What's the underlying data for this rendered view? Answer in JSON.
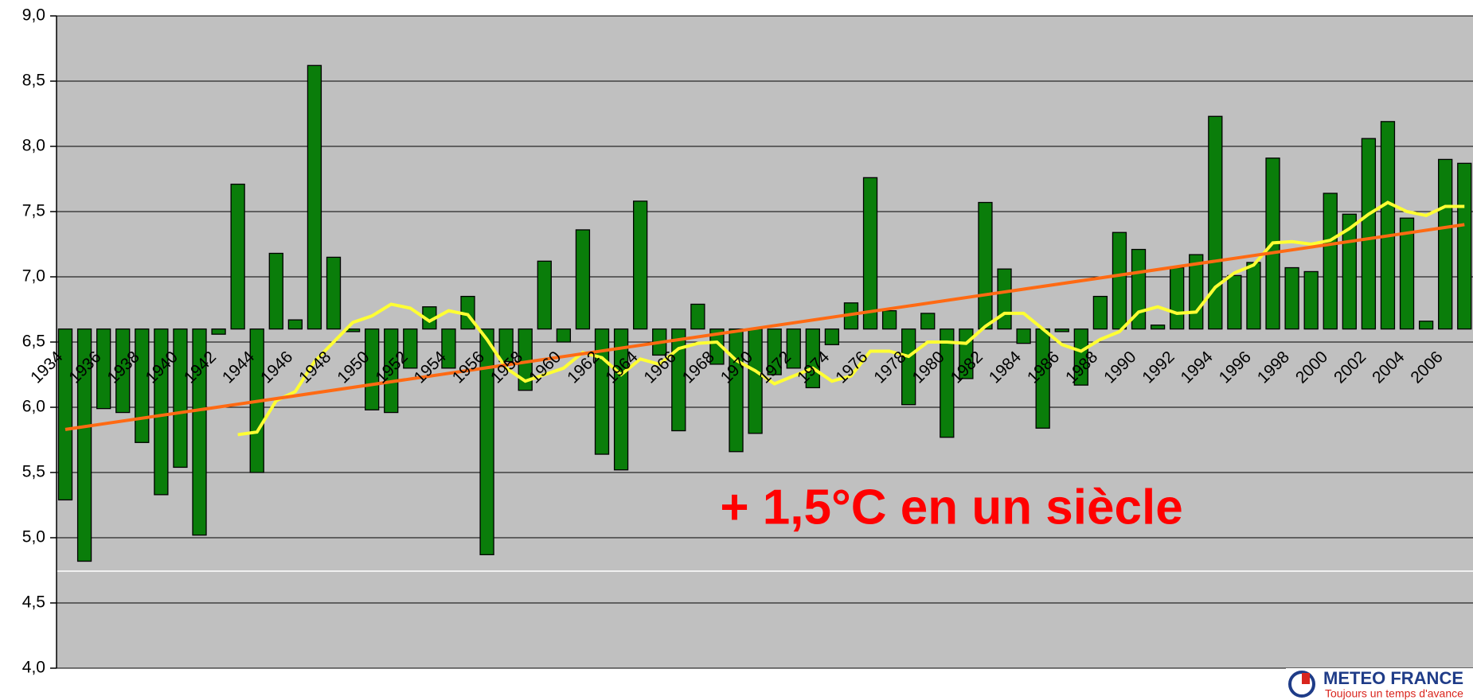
{
  "chart_data": {
    "type": "bar",
    "categories": [
      "1934",
      null,
      "1936",
      null,
      "1938",
      null,
      "1940",
      null,
      "1942",
      null,
      "1944",
      null,
      "1946",
      null,
      "1948",
      null,
      "1950",
      null,
      "1952",
      null,
      "1954",
      null,
      "1956",
      null,
      "1958",
      null,
      "1960",
      null,
      "1962",
      null,
      "1964",
      null,
      "1966",
      null,
      "1968",
      null,
      "1970",
      null,
      "1972",
      null,
      "1974",
      null,
      "1976",
      null,
      "1978",
      null,
      "1980",
      null,
      "1982",
      null,
      "1984",
      null,
      "1986",
      null,
      "1988",
      null,
      "1990",
      null,
      "1992",
      null,
      "1994",
      null,
      "1996",
      null,
      "1998",
      null,
      "2000",
      null,
      "2002",
      null,
      "2004",
      null,
      "2006",
      null
    ],
    "bar_base": 6.6,
    "series": [
      {
        "type": "bar",
        "color": "#0a7d0a",
        "values": [
          5.29,
          4.82,
          5.99,
          5.96,
          5.73,
          5.33,
          5.54,
          5.02,
          6.56,
          7.71,
          5.5,
          7.18,
          6.67,
          8.62,
          7.15,
          6.58,
          5.98,
          5.96,
          6.3,
          6.77,
          6.3,
          6.85,
          4.87,
          6.35,
          6.13,
          7.12,
          6.5,
          7.36,
          5.64,
          5.52,
          7.58,
          6.4,
          5.82,
          6.79,
          6.33,
          5.66,
          5.8,
          6.25,
          6.3,
          6.15,
          6.48,
          6.8,
          7.76,
          6.74,
          6.02,
          6.72,
          5.77,
          6.22,
          7.57,
          7.06,
          6.49,
          5.84,
          6.58,
          6.17,
          6.85,
          7.34,
          7.21,
          6.63,
          7.07,
          7.17,
          8.23,
          7.01,
          7.11,
          7.91,
          7.07,
          7.04,
          7.64,
          7.48,
          8.06,
          8.19,
          7.45,
          6.66,
          7.9,
          7.87
        ]
      },
      {
        "type": "line",
        "color": "#ffff33",
        "values": [
          null,
          null,
          null,
          null,
          null,
          null,
          null,
          null,
          null,
          5.79,
          5.81,
          6.05,
          6.12,
          6.35,
          6.5,
          6.65,
          6.7,
          6.79,
          6.76,
          6.66,
          6.74,
          6.71,
          6.52,
          6.3,
          6.2,
          6.25,
          6.3,
          6.42,
          6.38,
          6.25,
          6.37,
          6.33,
          6.45,
          6.49,
          6.5,
          6.36,
          6.28,
          6.18,
          6.24,
          6.3,
          6.2,
          6.24,
          6.43,
          6.43,
          6.39,
          6.5,
          6.5,
          6.49,
          6.62,
          6.72,
          6.72,
          6.6,
          6.48,
          6.43,
          6.52,
          6.58,
          6.73,
          6.77,
          6.72,
          6.73,
          6.92,
          7.03,
          7.09,
          7.26,
          7.27,
          7.25,
          7.28,
          7.37,
          7.48,
          7.57,
          7.5,
          7.47,
          7.54,
          7.54
        ]
      },
      {
        "type": "line",
        "color": "#ff6a13",
        "values": [
          5.83,
          null,
          null,
          null,
          null,
          null,
          null,
          null,
          null,
          null,
          null,
          null,
          null,
          null,
          null,
          null,
          null,
          null,
          null,
          null,
          null,
          null,
          null,
          null,
          null,
          null,
          null,
          null,
          null,
          null,
          null,
          null,
          null,
          null,
          null,
          null,
          null,
          null,
          null,
          null,
          null,
          null,
          null,
          null,
          null,
          null,
          null,
          null,
          null,
          null,
          null,
          null,
          null,
          null,
          null,
          null,
          null,
          null,
          null,
          null,
          null,
          null,
          null,
          null,
          null,
          null,
          null,
          null,
          null,
          null,
          null,
          null,
          null,
          7.4
        ],
        "connect_gaps": true
      }
    ],
    "ylim": [
      4.0,
      9.0
    ],
    "yticks": [
      {
        "value": 4.0,
        "label": "4,0"
      },
      {
        "value": 4.5,
        "label": "4,5"
      },
      {
        "value": 5.0,
        "label": "5,0"
      },
      {
        "value": 5.5,
        "label": "5,5"
      },
      {
        "value": 6.0,
        "label": "6,0"
      },
      {
        "value": 6.5,
        "label": "6,5"
      },
      {
        "value": 7.0,
        "label": "7,0"
      },
      {
        "value": 7.5,
        "label": "7,5"
      },
      {
        "value": 8.0,
        "label": "8,0"
      },
      {
        "value": 8.5,
        "label": "8,5"
      },
      {
        "value": 9.0,
        "label": "9,0"
      }
    ],
    "grid": true,
    "annotation": "+ 1,5°C en un siècle"
  },
  "logo": {
    "name": "METEO FRANCE",
    "tagline": "Toujours un temps d'avance"
  }
}
